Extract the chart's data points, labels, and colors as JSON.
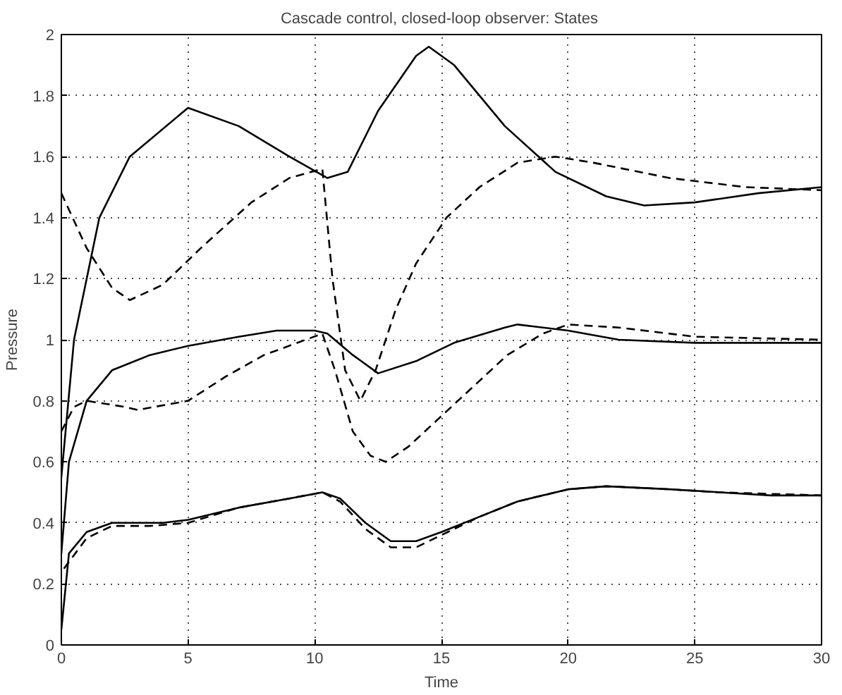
{
  "chart_data": {
    "type": "line",
    "title": "Cascade control, closed-loop  observer: States",
    "xlabel": "Time",
    "ylabel": "Pressure",
    "xlim": [
      0,
      30
    ],
    "xticks": [
      0,
      5,
      10,
      15,
      20,
      25,
      30
    ],
    "ylim": [
      0,
      2
    ],
    "yticks": [
      0,
      0.2,
      0.4,
      0.6,
      0.8,
      1,
      1.2,
      1.4,
      1.6,
      1.8,
      2
    ],
    "grid": true,
    "marker": "none",
    "series": [
      {
        "color": "#000000",
        "line_style": "solid",
        "x": [
          0,
          0.5,
          1.5,
          2.7,
          5,
          7,
          9,
          10.5,
          11.3,
          12.5,
          14,
          14.5,
          15.5,
          17.5,
          19.5,
          21.5,
          23,
          25,
          27.5,
          30
        ],
        "values": [
          0.55,
          1.0,
          1.4,
          1.6,
          1.76,
          1.7,
          1.6,
          1.53,
          1.55,
          1.75,
          1.93,
          1.96,
          1.9,
          1.7,
          1.55,
          1.47,
          1.44,
          1.45,
          1.48,
          1.5
        ]
      },
      {
        "color": "#000000",
        "line_style": "dashed",
        "x": [
          0,
          1,
          2,
          2.7,
          4,
          5.5,
          7.5,
          9,
          10.3,
          10.7,
          11.2,
          11.8,
          12.4,
          13.2,
          14,
          15.2,
          16.5,
          18,
          19.5,
          21,
          24,
          27,
          30
        ],
        "values": [
          1.48,
          1.3,
          1.17,
          1.13,
          1.18,
          1.3,
          1.45,
          1.53,
          1.56,
          1.2,
          0.9,
          0.8,
          0.9,
          1.1,
          1.25,
          1.4,
          1.5,
          1.58,
          1.6,
          1.58,
          1.53,
          1.5,
          1.49
        ]
      },
      {
        "color": "#000000",
        "line_style": "solid",
        "x": [
          0,
          0.3,
          1,
          2,
          3.5,
          5,
          7,
          8.5,
          10,
          10.5,
          11.5,
          12.5,
          14,
          15.5,
          17.5,
          18,
          20,
          22,
          25,
          30
        ],
        "values": [
          0.3,
          0.6,
          0.8,
          0.9,
          0.95,
          0.98,
          1.01,
          1.03,
          1.03,
          1.02,
          0.95,
          0.89,
          0.93,
          0.99,
          1.04,
          1.05,
          1.03,
          1.0,
          0.99,
          0.99
        ]
      },
      {
        "color": "#000000",
        "line_style": "dashed",
        "x": [
          0,
          0.5,
          1,
          2.5,
          3,
          5,
          6.5,
          8,
          10.3,
          10.8,
          11.5,
          12.2,
          12.8,
          13.7,
          15,
          16.3,
          17.6,
          19,
          20,
          22,
          25,
          30
        ],
        "values": [
          0.7,
          0.78,
          0.8,
          0.78,
          0.77,
          0.8,
          0.88,
          0.95,
          1.02,
          0.9,
          0.7,
          0.62,
          0.6,
          0.65,
          0.75,
          0.85,
          0.95,
          1.02,
          1.05,
          1.04,
          1.01,
          1.0
        ]
      },
      {
        "color": "#000000",
        "line_style": "solid",
        "x": [
          0,
          0.3,
          1,
          2,
          4,
          5,
          7,
          9,
          10.3,
          11,
          12,
          13,
          14,
          15,
          16.5,
          18,
          20,
          21.5,
          24,
          26,
          28,
          30
        ],
        "values": [
          0.05,
          0.3,
          0.37,
          0.4,
          0.4,
          0.41,
          0.45,
          0.48,
          0.5,
          0.48,
          0.4,
          0.34,
          0.34,
          0.37,
          0.42,
          0.47,
          0.51,
          0.52,
          0.51,
          0.5,
          0.49,
          0.49
        ]
      },
      {
        "color": "#000000",
        "line_style": "dashed",
        "x": [
          0.1,
          1,
          2,
          3.5,
          5,
          7,
          9,
          10.3,
          11,
          12,
          13,
          14,
          15,
          16.5,
          18,
          20,
          21.5,
          24,
          26,
          30
        ],
        "values": [
          0.25,
          0.35,
          0.39,
          0.39,
          0.4,
          0.45,
          0.48,
          0.5,
          0.47,
          0.38,
          0.32,
          0.32,
          0.36,
          0.42,
          0.47,
          0.51,
          0.52,
          0.51,
          0.5,
          0.49
        ]
      }
    ]
  }
}
